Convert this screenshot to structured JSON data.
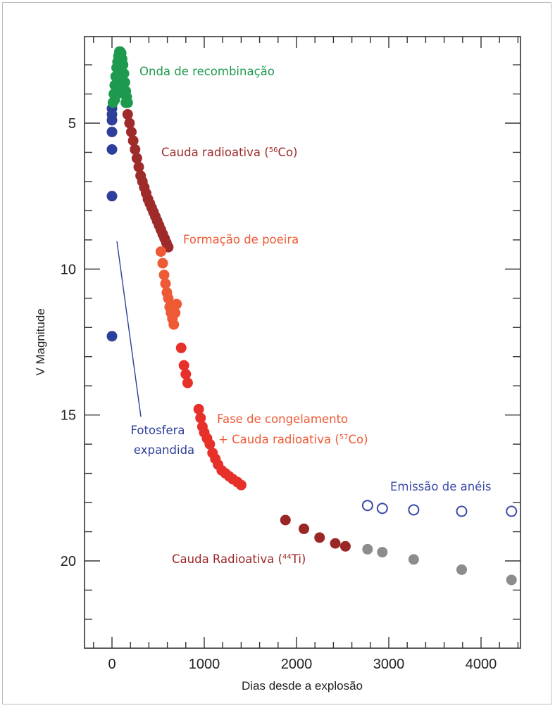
{
  "chart_data": {
    "type": "scatter",
    "title": "",
    "xlabel": "Dias desde a explosão",
    "ylabel": "V Magnitude",
    "xlim": [
      -300,
      4550
    ],
    "ylim": [
      2,
      23
    ],
    "y_inverted": true,
    "grid": false,
    "xticks": [
      0,
      1000,
      2000,
      3000,
      4000
    ],
    "yticks": [
      5,
      10,
      15,
      20
    ],
    "colors": {
      "recombination": "#1e9a4e",
      "photosphere": "#2d3f9a",
      "cobalt56": "#9e2a2a",
      "dust": "#ee5a35",
      "freeze": "#e8302a",
      "titanium": "#9b2626",
      "rings": "#3a4aa6",
      "late": "#8c8c8c",
      "axis": "#333333"
    },
    "annotations": [
      {
        "key": "recombination",
        "parts": [
          [
            "Onda de recombinação",
            ""
          ]
        ]
      },
      {
        "key": "cobalt56",
        "parts": [
          [
            "Cauda radioativa (",
            ""
          ],
          [
            "56",
            "sup"
          ],
          [
            "Co)",
            ""
          ]
        ]
      },
      {
        "key": "dust",
        "parts": [
          [
            "Formação de poeira",
            ""
          ]
        ]
      },
      {
        "key": "freeze1",
        "parts": [
          [
            "Fase de congelamento",
            ""
          ]
        ]
      },
      {
        "key": "freeze2",
        "parts": [
          [
            "+ Cauda radioativa (",
            ""
          ],
          [
            "57",
            "sup"
          ],
          [
            "Co)",
            ""
          ]
        ]
      },
      {
        "key": "photo1",
        "parts": [
          [
            "Fotosfera",
            ""
          ]
        ]
      },
      {
        "key": "photo2",
        "parts": [
          [
            "expandida",
            ""
          ]
        ]
      },
      {
        "key": "rings",
        "parts": [
          [
            "Emissão de anéis",
            ""
          ]
        ]
      },
      {
        "key": "titanium",
        "parts": [
          [
            "Cauda Radioativa (",
            ""
          ],
          [
            "44",
            "sup"
          ],
          [
            "Ti)",
            ""
          ]
        ]
      }
    ],
    "series": [
      {
        "key": "photosphere",
        "marker": "filled",
        "points": [
          [
            0,
            4.5
          ],
          [
            0,
            4.7
          ],
          [
            0,
            4.9
          ],
          [
            0,
            5.3
          ],
          [
            0,
            5.9
          ],
          [
            0,
            7.5
          ],
          [
            0,
            12.3
          ]
        ]
      },
      {
        "key": "recombination",
        "marker": "filled",
        "points": [
          [
            10,
            4.3
          ],
          [
            20,
            4.0
          ],
          [
            30,
            3.7
          ],
          [
            40,
            3.4
          ],
          [
            50,
            3.1
          ],
          [
            60,
            2.9
          ],
          [
            70,
            2.7
          ],
          [
            80,
            2.55
          ],
          [
            90,
            2.55
          ],
          [
            100,
            2.6
          ],
          [
            110,
            2.8
          ],
          [
            120,
            3.0
          ],
          [
            130,
            3.3
          ],
          [
            140,
            3.6
          ],
          [
            150,
            3.9
          ],
          [
            160,
            4.1
          ],
          [
            170,
            4.3
          ],
          [
            30,
            4.2
          ],
          [
            50,
            4.0
          ],
          [
            70,
            3.8
          ],
          [
            90,
            3.6
          ],
          [
            110,
            3.7
          ],
          [
            130,
            4.0
          ],
          [
            150,
            4.3
          ]
        ]
      },
      {
        "key": "cobalt56",
        "marker": "filled",
        "points": [
          [
            170,
            4.7
          ],
          [
            190,
            5.0
          ],
          [
            210,
            5.3
          ],
          [
            230,
            5.6
          ],
          [
            250,
            5.9
          ],
          [
            270,
            6.2
          ],
          [
            290,
            6.5
          ],
          [
            310,
            6.8
          ],
          [
            330,
            7.0
          ],
          [
            350,
            7.2
          ],
          [
            370,
            7.4
          ],
          [
            390,
            7.6
          ],
          [
            410,
            7.75
          ],
          [
            430,
            7.9
          ],
          [
            450,
            8.05
          ],
          [
            470,
            8.2
          ],
          [
            490,
            8.35
          ],
          [
            510,
            8.5
          ],
          [
            530,
            8.65
          ],
          [
            550,
            8.8
          ],
          [
            570,
            8.95
          ],
          [
            590,
            9.1
          ],
          [
            610,
            9.25
          ]
        ]
      },
      {
        "key": "dust",
        "marker": "filled",
        "points": [
          [
            530,
            9.4
          ],
          [
            550,
            9.8
          ],
          [
            565,
            10.2
          ],
          [
            580,
            10.5
          ],
          [
            595,
            10.8
          ],
          [
            610,
            11.0
          ],
          [
            625,
            11.3
          ],
          [
            640,
            11.5
          ],
          [
            655,
            11.7
          ],
          [
            670,
            11.9
          ],
          [
            685,
            11.5
          ],
          [
            700,
            11.2
          ]
        ]
      },
      {
        "key": "freeze",
        "marker": "filled",
        "points": [
          [
            750,
            12.7
          ],
          [
            780,
            13.3
          ],
          [
            800,
            13.6
          ],
          [
            820,
            13.9
          ],
          [
            940,
            14.8
          ],
          [
            960,
            15.1
          ],
          [
            980,
            15.4
          ],
          [
            1000,
            15.6
          ],
          [
            1030,
            15.8
          ],
          [
            1060,
            16.0
          ],
          [
            1090,
            16.3
          ],
          [
            1120,
            16.5
          ],
          [
            1150,
            16.7
          ],
          [
            1190,
            16.9
          ],
          [
            1230,
            17.0
          ],
          [
            1270,
            17.1
          ],
          [
            1310,
            17.2
          ],
          [
            1360,
            17.3
          ],
          [
            1400,
            17.4
          ]
        ]
      },
      {
        "key": "titanium",
        "marker": "filled",
        "points": [
          [
            1880,
            18.6
          ],
          [
            2080,
            18.9
          ],
          [
            2250,
            19.2
          ],
          [
            2420,
            19.4
          ],
          [
            2530,
            19.5
          ]
        ]
      },
      {
        "key": "late",
        "marker": "filled",
        "points": [
          [
            2770,
            19.6
          ],
          [
            2930,
            19.7
          ],
          [
            3270,
            19.95
          ],
          [
            3790,
            20.3
          ],
          [
            4330,
            20.65
          ]
        ]
      },
      {
        "key": "rings",
        "marker": "open",
        "points": [
          [
            2770,
            18.1
          ],
          [
            2930,
            18.2
          ],
          [
            3270,
            18.25
          ],
          [
            3790,
            18.3
          ],
          [
            4330,
            18.3
          ]
        ]
      }
    ]
  }
}
